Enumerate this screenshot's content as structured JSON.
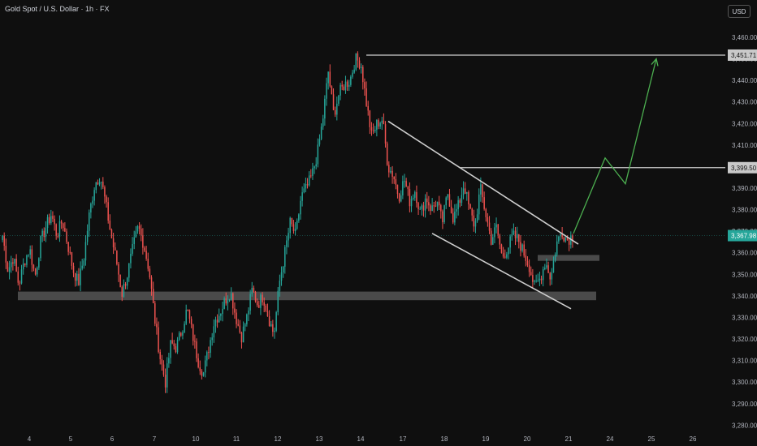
{
  "header": {
    "title": "Gold Spot / U.S. Dollar · 1h · FX",
    "currency": "USD"
  },
  "colors": {
    "up": "#26a69a",
    "down": "#ef5350",
    "zone": "#555555",
    "trendline": "#cfcfcf",
    "projection": "#4caf50",
    "price_label_bg": "#26a69a",
    "level_label_bg": "#c9c9c9"
  },
  "chart_data": {
    "type": "candlestick",
    "symbol": "Gold Spot / U.S. Dollar",
    "interval": "1h",
    "y_axis": {
      "ticks": [
        3280,
        3290,
        3300,
        3310,
        3320,
        3330,
        3340,
        3350,
        3360,
        3370,
        3380,
        3390,
        3400,
        3410,
        3420,
        3430,
        3440,
        3450,
        3460
      ],
      "tick_labels": [
        "3,280.00",
        "3,290.00",
        "3,300.00",
        "3,310.00",
        "3,320.00",
        "3,330.00",
        "3,340.00",
        "3,350.00",
        "3,360.00",
        "3,370.00",
        "3,380.00",
        "3,390.00",
        "3,400.00",
        "3,410.00",
        "3,420.00",
        "3,430.00",
        "3,440.00",
        "3,450.00",
        "3,460.00"
      ],
      "range": [
        3276,
        3466
      ]
    },
    "x_axis": {
      "labels": [
        "4",
        "5",
        "6",
        "7",
        "10",
        "11",
        "12",
        "13",
        "14",
        "17",
        "18",
        "19",
        "20",
        "21",
        "24",
        "25",
        "26"
      ]
    },
    "current_price": 3367.98,
    "current_price_label": "3,367.98",
    "level_labels": [
      {
        "value": 3451.71,
        "text": "3,451.71"
      },
      {
        "value": 3399.5,
        "text": "3,399.50"
      }
    ],
    "support_zone": {
      "from": 3338,
      "to": 3342
    },
    "small_zone": {
      "from": 3357,
      "to": 3359
    },
    "projection_points": [
      3369,
      3404,
      3392,
      3450
    ],
    "channel": {
      "upper": [
        3421,
        3364
      ],
      "lower": [
        3369,
        3334
      ]
    },
    "close_path": [
      {
        "day": "4",
        "points": [
          3368,
          3352,
          3358,
          3345,
          3356,
          3362,
          3349,
          3365
        ]
      },
      {
        "day": "5",
        "points": [
          3372,
          3378,
          3368,
          3375,
          3364,
          3352,
          3346,
          3358
        ]
      },
      {
        "day": "6",
        "points": [
          3378,
          3392,
          3396,
          3383,
          3368,
          3356,
          3341,
          3350
        ]
      },
      {
        "day": "7",
        "points": [
          3362,
          3372,
          3364,
          3352,
          3330,
          3312,
          3300,
          3318
        ]
      },
      {
        "day": "10",
        "points": [
          3316,
          3324,
          3334,
          3322,
          3310,
          3304,
          3316,
          3328
        ]
      },
      {
        "day": "11",
        "points": [
          3332,
          3338,
          3342,
          3330,
          3321,
          3330,
          3343,
          3336
        ]
      },
      {
        "day": "12",
        "points": [
          3340,
          3330,
          3322,
          3346,
          3360,
          3374,
          3368,
          3386
        ]
      },
      {
        "day": "13",
        "points": [
          3390,
          3396,
          3406,
          3422,
          3444,
          3424,
          3434,
          3438
        ]
      },
      {
        "day": "14",
        "points": [
          3440,
          3450,
          3448,
          3430,
          3414,
          3420,
          3422,
          3400
        ]
      },
      {
        "day": "17",
        "points": [
          3396,
          3386,
          3394,
          3384,
          3389,
          3378,
          3386,
          3380
        ]
      },
      {
        "day": "18",
        "points": [
          3384,
          3374,
          3388,
          3376,
          3382,
          3392,
          3380,
          3372
        ]
      },
      {
        "day": "19",
        "points": [
          3390,
          3378,
          3366,
          3372,
          3358,
          3362,
          3368,
          3366
        ]
      },
      {
        "day": "20",
        "points": [
          3360,
          3354,
          3344,
          3348,
          3356,
          3348,
          3364,
          3370
        ]
      },
      {
        "day": "21",
        "points": [
          3366,
          3368
        ]
      }
    ]
  }
}
